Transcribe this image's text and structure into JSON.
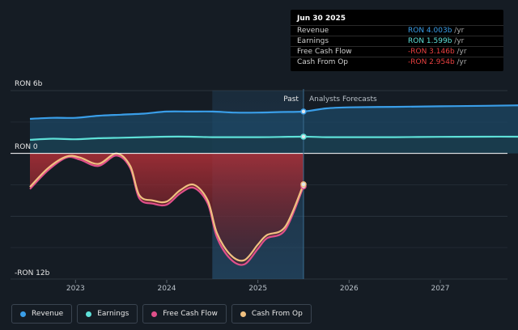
{
  "colors": {
    "revenue": "#3a9ee8",
    "earnings": "#5ee0d8",
    "free_cash_flow": "#e0508a",
    "cash_from_op": "#f0c080"
  },
  "tooltip": {
    "date": "Jun 30 2025",
    "rows": [
      {
        "label": "Revenue",
        "value": "RON 4.003b",
        "unit": " /yr",
        "color": "#3a9ee8"
      },
      {
        "label": "Earnings",
        "value": "RON 1.599b",
        "unit": " /yr",
        "color": "#5ee0d8"
      },
      {
        "label": "Free Cash Flow",
        "value": "-RON 3.146b",
        "unit": " /yr",
        "color": "#e84040"
      },
      {
        "label": "Cash From Op",
        "value": "-RON 2.954b",
        "unit": " /yr",
        "color": "#e84040"
      }
    ]
  },
  "chart_data": {
    "type": "line",
    "y_top_label": "RON 6b",
    "y_zero_label": "RON 0",
    "y_bottom_label": "-RON 12b",
    "ylim": [
      -12,
      6
    ],
    "xlim": [
      2022.5,
      2027.95
    ],
    "past_label": "Past",
    "forecast_label": "Analysts Forecasts",
    "past_end": 2025.5,
    "highlight_start": 2024.5,
    "x_ticks": [
      "2023",
      "2024",
      "2025",
      "2026",
      "2027"
    ],
    "series": [
      {
        "name": "Revenue",
        "x": [
          2022.5,
          2022.75,
          2023.0,
          2023.25,
          2023.5,
          2023.75,
          2024.0,
          2024.25,
          2024.5,
          2024.75,
          2025.0,
          2025.25,
          2025.5,
          2025.75,
          2026.0,
          2026.5,
          2027.0,
          2027.5,
          2027.95
        ],
        "y": [
          3.3,
          3.4,
          3.4,
          3.6,
          3.7,
          3.8,
          4.0,
          4.0,
          4.0,
          3.9,
          3.9,
          3.95,
          4.0,
          4.3,
          4.4,
          4.45,
          4.5,
          4.55,
          4.6
        ]
      },
      {
        "name": "Earnings",
        "x": [
          2022.5,
          2022.75,
          2023.0,
          2023.25,
          2023.5,
          2023.75,
          2024.0,
          2024.25,
          2024.5,
          2024.75,
          2025.0,
          2025.25,
          2025.5,
          2025.75,
          2026.0,
          2026.5,
          2027.0,
          2027.5,
          2027.95
        ],
        "y": [
          1.3,
          1.4,
          1.35,
          1.45,
          1.5,
          1.55,
          1.6,
          1.6,
          1.55,
          1.55,
          1.55,
          1.57,
          1.6,
          1.55,
          1.55,
          1.55,
          1.58,
          1.6,
          1.6
        ]
      },
      {
        "name": "Free Cash Flow",
        "x": [
          2022.5,
          2022.7,
          2022.9,
          2023.05,
          2023.25,
          2023.45,
          2023.6,
          2023.7,
          2023.85,
          2024.0,
          2024.15,
          2024.3,
          2024.45,
          2024.55,
          2024.7,
          2024.85,
          2025.0,
          2025.1,
          2025.3,
          2025.5
        ],
        "y": [
          -3.4,
          -1.6,
          -0.4,
          -0.6,
          -1.2,
          -0.2,
          -1.4,
          -4.3,
          -4.8,
          -4.9,
          -3.8,
          -3.3,
          -4.8,
          -8.0,
          -10.1,
          -10.6,
          -9.1,
          -8.1,
          -7.3,
          -3.15
        ]
      },
      {
        "name": "Cash From Op",
        "x": [
          2022.5,
          2022.7,
          2022.9,
          2023.05,
          2023.25,
          2023.45,
          2023.6,
          2023.7,
          2023.85,
          2024.0,
          2024.15,
          2024.3,
          2024.45,
          2024.55,
          2024.7,
          2024.85,
          2025.0,
          2025.1,
          2025.3,
          2025.5
        ],
        "y": [
          -3.2,
          -1.4,
          -0.3,
          -0.4,
          -1.0,
          0.0,
          -1.2,
          -4.0,
          -4.5,
          -4.6,
          -3.5,
          -3.0,
          -4.5,
          -7.6,
          -9.7,
          -10.2,
          -8.7,
          -7.8,
          -7.0,
          -2.95
        ]
      }
    ]
  },
  "legend": [
    {
      "label": "Revenue",
      "color": "#3a9ee8"
    },
    {
      "label": "Earnings",
      "color": "#5ee0d8"
    },
    {
      "label": "Free Cash Flow",
      "color": "#e0508a"
    },
    {
      "label": "Cash From Op",
      "color": "#f0c080"
    }
  ]
}
